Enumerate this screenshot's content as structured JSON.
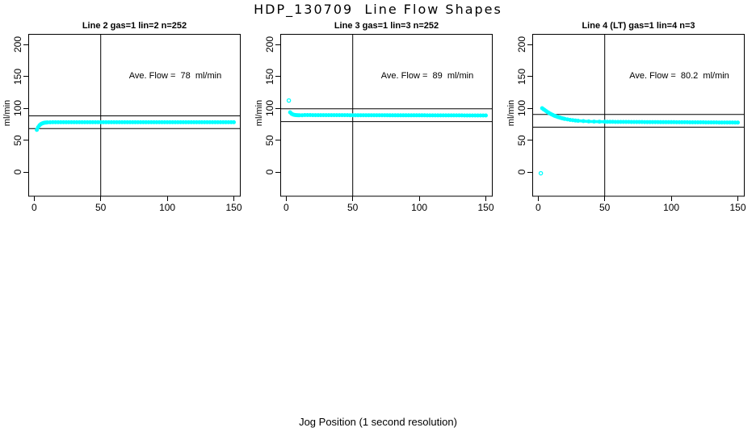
{
  "title": "HDP_130709  Line Flow Shapes",
  "xlabel": "Jog Position (1 second resolution)",
  "colors": {
    "data": "#00FFFF",
    "axis": "#000000",
    "background": "#FFFFFF",
    "text": "#000000"
  },
  "chart_data": [
    {
      "type": "scatter",
      "title": "Line 2 gas=1 lin=2 n=252",
      "annotation": "Ave. Flow =  78  ml/min",
      "ave_flow_ml_min": 78,
      "n": 252,
      "ylabel": "ml/min",
      "x_ticks": [
        0,
        50,
        100,
        150
      ],
      "y_ticks": [
        0,
        50,
        100,
        150,
        200
      ],
      "xlim": [
        -4,
        156
      ],
      "ylim": [
        -40,
        215
      ],
      "grid": false,
      "vline_x": 50,
      "hlines_y": [
        88,
        68
      ],
      "series": {
        "name": "flow",
        "marker": "open-circle",
        "color": "#00FFFF",
        "rise_points": [
          [
            2,
            66
          ],
          [
            3,
            70.3
          ],
          [
            4,
            73.2
          ],
          [
            5,
            74.9
          ],
          [
            6,
            76.1
          ],
          [
            7,
            76.8
          ],
          [
            8,
            77.3
          ],
          [
            9,
            77.5
          ],
          [
            10,
            77.7
          ],
          [
            12,
            77.9
          ],
          [
            14,
            78
          ]
        ],
        "plateau": {
          "x_from": 16,
          "x_to": 150,
          "x_step": 2,
          "y_start": 78,
          "y_end": 78
        },
        "outliers": []
      }
    },
    {
      "type": "scatter",
      "title": "Line 3 gas=1 lin=3 n=252",
      "annotation": "Ave. Flow =  89  ml/min",
      "ave_flow_ml_min": 89,
      "n": 252,
      "ylabel": "ml/min",
      "x_ticks": [
        0,
        50,
        100,
        150
      ],
      "y_ticks": [
        0,
        50,
        100,
        150,
        200
      ],
      "xlim": [
        -4,
        156
      ],
      "ylim": [
        -40,
        215
      ],
      "grid": false,
      "vline_x": 50,
      "hlines_y": [
        99,
        79
      ],
      "series": {
        "name": "flow",
        "marker": "open-circle",
        "color": "#00FFFF",
        "rise_points": [
          [
            3,
            93.5
          ],
          [
            4,
            91.4
          ],
          [
            5,
            90.2
          ],
          [
            6,
            89.6
          ],
          [
            7,
            89.3
          ],
          [
            8,
            89.1
          ],
          [
            9,
            89
          ],
          [
            10,
            89
          ],
          [
            12,
            89
          ]
        ],
        "plateau": {
          "x_from": 14,
          "x_to": 150,
          "x_step": 2,
          "y_start": 89.2,
          "y_end": 88.6
        },
        "outliers": [
          [
            2,
            112
          ]
        ]
      }
    },
    {
      "type": "scatter",
      "title": "Line 4 (LT) gas=1 lin=4 n=3",
      "annotation": "Ave. Flow =  80.2  ml/min",
      "ave_flow_ml_min": 80.2,
      "n": 3,
      "ylabel": "ml/min",
      "x_ticks": [
        0,
        50,
        100,
        150
      ],
      "y_ticks": [
        0,
        50,
        100,
        150,
        200
      ],
      "xlim": [
        -4,
        156
      ],
      "ylim": [
        -40,
        215
      ],
      "grid": false,
      "vline_x": 50,
      "hlines_y": [
        90.2,
        70.2
      ],
      "series": {
        "name": "flow",
        "marker": "open-circle",
        "color": "#00FFFF",
        "rise_points": [
          [
            3,
            100
          ],
          [
            4,
            98.4
          ],
          [
            5,
            96.9
          ],
          [
            6,
            95.4
          ],
          [
            7,
            94
          ],
          [
            8,
            92.7
          ],
          [
            9,
            91.5
          ],
          [
            10,
            90.4
          ],
          [
            11,
            89.4
          ],
          [
            12,
            88.4
          ],
          [
            13,
            87.6
          ],
          [
            14,
            86.8
          ],
          [
            15,
            86.1
          ],
          [
            16,
            85.4
          ],
          [
            17,
            84.8
          ],
          [
            18,
            84.2
          ],
          [
            19,
            83.7
          ],
          [
            20,
            83.2
          ],
          [
            22,
            82.4
          ],
          [
            24,
            81.7
          ],
          [
            26,
            81.1
          ],
          [
            28,
            80.6
          ],
          [
            30,
            80.2
          ],
          [
            34,
            79.7
          ],
          [
            38,
            79.3
          ],
          [
            42,
            79
          ],
          [
            46,
            78.8
          ],
          [
            50,
            78.7
          ]
        ],
        "plateau": {
          "x_from": 52,
          "x_to": 150,
          "x_step": 2,
          "y_start": 78.6,
          "y_end": 77.5
        },
        "outliers": [
          [
            2,
            -2
          ]
        ]
      }
    }
  ]
}
